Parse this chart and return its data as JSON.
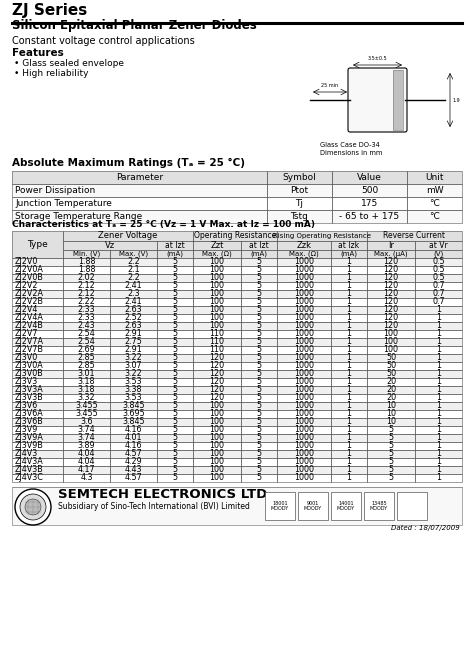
{
  "title": "ZJ Series",
  "subtitle": "Silicon Epitaxial Planar Zener Diodes",
  "application": "Constant voltage control applications",
  "features": [
    "Glass sealed envelope",
    "High reliability"
  ],
  "abs_max_title": "Absolute Maximum Ratings (Tₐ = 25 °C)",
  "abs_max_headers": [
    "Parameter",
    "Symbol",
    "Value",
    "Unit"
  ],
  "abs_max_rows": [
    [
      "Power Dissipation",
      "Ptot",
      "500",
      "mW"
    ],
    [
      "Junction Temperature",
      "Tj",
      "175",
      "°C"
    ],
    [
      "Storage Temperature Range",
      "Tstg",
      "- 65 to + 175",
      "°C"
    ]
  ],
  "char_title": "Characteristics at Tₐ = 25 °C (Vz = 1 V Max. at Iz = 100 mA)",
  "char_rows": [
    [
      "ZJ2V0",
      "1.88",
      "2.2",
      "5",
      "100",
      "5",
      "1000",
      "1",
      "120",
      "0.5"
    ],
    [
      "ZJ2V0A",
      "1.88",
      "2.1",
      "5",
      "100",
      "5",
      "1000",
      "1",
      "120",
      "0.5"
    ],
    [
      "ZJ2V0B",
      "2.02",
      "2.2",
      "5",
      "100",
      "5",
      "1000",
      "1",
      "120",
      "0.5"
    ],
    [
      "ZJ2V2",
      "2.12",
      "2.41",
      "5",
      "100",
      "5",
      "1000",
      "1",
      "120",
      "0.7"
    ],
    [
      "ZJ2V2A",
      "2.12",
      "2.3",
      "5",
      "100",
      "5",
      "1000",
      "1",
      "120",
      "0.7"
    ],
    [
      "ZJ2V2B",
      "2.22",
      "2.41",
      "5",
      "100",
      "5",
      "1000",
      "1",
      "120",
      "0.7"
    ],
    [
      "ZJ2V4",
      "2.33",
      "2.63",
      "5",
      "100",
      "5",
      "1000",
      "1",
      "120",
      "1"
    ],
    [
      "ZJ2V4A",
      "2.33",
      "2.52",
      "5",
      "100",
      "5",
      "1000",
      "1",
      "120",
      "1"
    ],
    [
      "ZJ2V4B",
      "2.43",
      "2.63",
      "5",
      "100",
      "5",
      "1000",
      "1",
      "120",
      "1"
    ],
    [
      "ZJ2V7",
      "2.54",
      "2.91",
      "5",
      "110",
      "5",
      "1000",
      "1",
      "100",
      "1"
    ],
    [
      "ZJ2V7A",
      "2.54",
      "2.75",
      "5",
      "110",
      "5",
      "1000",
      "1",
      "100",
      "1"
    ],
    [
      "ZJ2V7B",
      "2.69",
      "2.91",
      "5",
      "110",
      "5",
      "1000",
      "1",
      "100",
      "1"
    ],
    [
      "ZJ3V0",
      "2.85",
      "3.22",
      "5",
      "120",
      "5",
      "1000",
      "1",
      "50",
      "1"
    ],
    [
      "ZJ3V0A",
      "2.85",
      "3.07",
      "5",
      "120",
      "5",
      "1000",
      "1",
      "50",
      "1"
    ],
    [
      "ZJ3V0B",
      "3.01",
      "3.22",
      "5",
      "120",
      "5",
      "1000",
      "1",
      "50",
      "1"
    ],
    [
      "ZJ3V3",
      "3.18",
      "3.53",
      "5",
      "120",
      "5",
      "1000",
      "1",
      "20",
      "1"
    ],
    [
      "ZJ3V3A",
      "3.18",
      "3.38",
      "5",
      "120",
      "5",
      "1000",
      "1",
      "20",
      "1"
    ],
    [
      "ZJ3V3B",
      "3.32",
      "3.53",
      "5",
      "120",
      "5",
      "1000",
      "1",
      "20",
      "1"
    ],
    [
      "ZJ3V6",
      "3.455",
      "3.845",
      "5",
      "100",
      "5",
      "1000",
      "1",
      "10",
      "1"
    ],
    [
      "ZJ3V6A",
      "3.455",
      "3.695",
      "5",
      "100",
      "5",
      "1000",
      "1",
      "10",
      "1"
    ],
    [
      "ZJ3V6B",
      "3.6",
      "3.845",
      "5",
      "100",
      "5",
      "1000",
      "1",
      "10",
      "1"
    ],
    [
      "ZJ3V9",
      "3.74",
      "4.16",
      "5",
      "100",
      "5",
      "1000",
      "1",
      "5",
      "1"
    ],
    [
      "ZJ3V9A",
      "3.74",
      "4.01",
      "5",
      "100",
      "5",
      "1000",
      "1",
      "5",
      "1"
    ],
    [
      "ZJ3V9B",
      "3.89",
      "4.16",
      "5",
      "100",
      "5",
      "1000",
      "1",
      "5",
      "1"
    ],
    [
      "ZJ4V3",
      "4.04",
      "4.57",
      "5",
      "100",
      "5",
      "1000",
      "1",
      "5",
      "1"
    ],
    [
      "ZJ4V3A",
      "4.04",
      "4.29",
      "5",
      "100",
      "5",
      "1000",
      "1",
      "5",
      "1"
    ],
    [
      "ZJ4V3B",
      "4.17",
      "4.43",
      "5",
      "100",
      "5",
      "1000",
      "1",
      "5",
      "1"
    ],
    [
      "ZJ4V3C",
      "4.3",
      "4.57",
      "5",
      "100",
      "5",
      "1000",
      "1",
      "5",
      "1"
    ]
  ],
  "footer_company": "SEMTECH ELECTRONICS LTD.",
  "footer_sub": "Subsidiary of Sino-Tech International (BVI) Limited",
  "footer_date": "Dated : 18/07/2009",
  "bg_color": "#ffffff",
  "text_color": "#000000",
  "header_bg": "#e0e0e0"
}
